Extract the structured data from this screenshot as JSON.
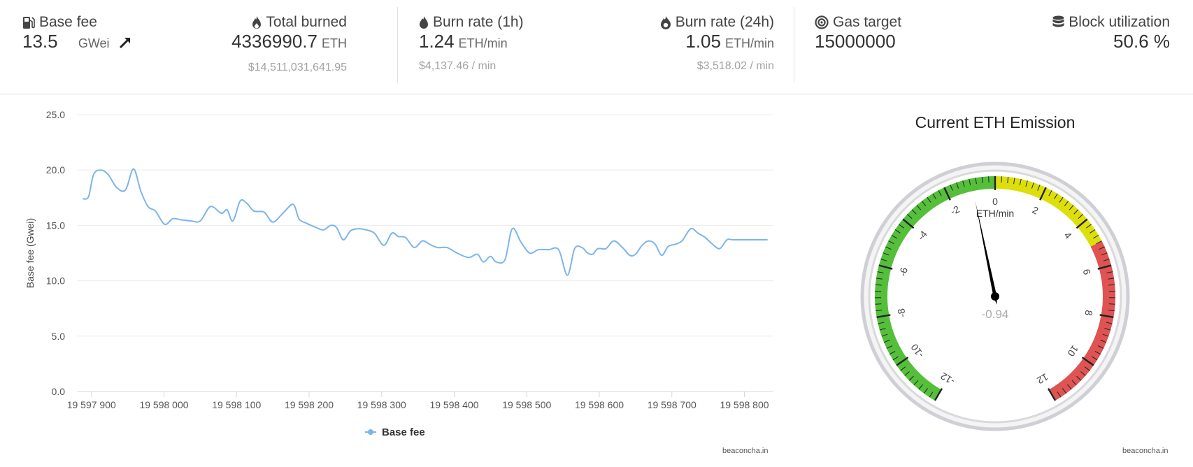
{
  "stats": {
    "base_fee": {
      "label": "Base fee",
      "value": "13.5",
      "unit": "GWei"
    },
    "total_burned": {
      "label": "Total burned",
      "value": "4336990.7",
      "unit": "ETH",
      "usd": "$14,511,031,641.95"
    },
    "burn_rate_1h": {
      "label": "Burn rate (1h)",
      "value": "1.24",
      "unit": "ETH/min",
      "usd": "$4,137.46 / min"
    },
    "burn_rate_24h": {
      "label": "Burn rate (24h)",
      "value": "1.05",
      "unit": "ETH/min",
      "usd": "$3,518.02 / min"
    },
    "gas_target": {
      "label": "Gas target",
      "value": "15000000"
    },
    "block_utilization": {
      "label": "Block utilization",
      "value": "50.6 %"
    }
  },
  "colors": {
    "line": "#7cb5ec",
    "green": "#55bf3b",
    "yellow": "#dddf0d",
    "red": "#df5353"
  },
  "chart_data": [
    {
      "type": "line",
      "title": "",
      "xlabel": "",
      "ylabel": "Base fee (Gwei)",
      "ylim": [
        0,
        25
      ],
      "xlim": [
        19597880,
        19598840
      ],
      "y_ticks": [
        "0.0",
        "5.0",
        "10.0",
        "15.0",
        "20.0",
        "25.0"
      ],
      "x_ticks": [
        "19 597 900",
        "19 598 000",
        "19 598 100",
        "19 598 200",
        "19 598 300",
        "19 598 400",
        "19 598 500",
        "19 598 600",
        "19 598 700",
        "19 598 800"
      ],
      "legend": "bottom-center",
      "credit": "beaconcha.in",
      "series": [
        {
          "name": "Base fee",
          "x": [
            19597888,
            19597896,
            19597903,
            19597913,
            19597923,
            19597935,
            19597947,
            19597958,
            19597968,
            19597978,
            19597988,
            19598001,
            19598012,
            19598024,
            19598038,
            19598050,
            19598064,
            19598079,
            19598087,
            19598095,
            19598105,
            19598114,
            19598124,
            19598138,
            19598150,
            19598164,
            19598178,
            19598186,
            19598196,
            19598210,
            19598220,
            19598230,
            19598238,
            19598247,
            19598257,
            19598267,
            19598278,
            19598290,
            19598303,
            19598314,
            19598323,
            19598333,
            19598345,
            19598356,
            19598366,
            19598377,
            19598390,
            19598404,
            19598420,
            19598432,
            19598440,
            19598450,
            19598458,
            19598470,
            19598480,
            19598492,
            19598504,
            19598516,
            19598530,
            19598544,
            19598556,
            19598566,
            19598576,
            19598584,
            19598591,
            19598598,
            19598609,
            19598620,
            19598632,
            19598642,
            19598650,
            19598659,
            19598668,
            19598677,
            19598686,
            19598695,
            19598705,
            19598714,
            19598726,
            19598736,
            19598746,
            19598756,
            19598766,
            19598776,
            19598784,
            19598792,
            19598802,
            19598812,
            19598822,
            19598832
          ],
          "y": [
            17.4,
            17.6,
            19.6,
            20.0,
            19.6,
            18.4,
            18.2,
            20.1,
            18.1,
            16.7,
            16.3,
            15.1,
            15.6,
            15.5,
            15.4,
            15.4,
            16.7,
            16.1,
            16.4,
            15.4,
            17.2,
            17.0,
            16.3,
            16.2,
            15.3,
            16.1,
            16.9,
            15.6,
            15.2,
            14.8,
            14.6,
            15.0,
            14.8,
            13.7,
            14.5,
            14.7,
            14.6,
            14.3,
            13.2,
            14.3,
            14.0,
            13.9,
            13.0,
            13.6,
            13.3,
            13.0,
            13.0,
            12.5,
            12.1,
            12.4,
            11.7,
            12.2,
            11.7,
            11.9,
            14.7,
            13.5,
            12.5,
            12.8,
            12.8,
            12.8,
            10.5,
            12.9,
            13.0,
            12.5,
            12.4,
            12.9,
            12.9,
            13.6,
            13.0,
            12.3,
            12.4,
            13.2,
            13.6,
            13.3,
            12.3,
            13.1,
            13.3,
            13.6,
            14.7,
            14.3,
            13.9,
            13.3,
            12.9,
            13.7,
            13.7,
            13.7,
            13.7,
            13.7,
            13.7,
            13.7
          ]
        }
      ]
    },
    {
      "type": "gauge",
      "title": "Current ETH Emission",
      "unit_label": "ETH/min",
      "value": -0.94,
      "value_label": "-0.94",
      "range": [
        -12,
        12
      ],
      "tick_labels": [
        "-12",
        "-10",
        "-8",
        "-6",
        "-4",
        "-2",
        "0",
        "2",
        "4",
        "6",
        "8",
        "10",
        "12"
      ],
      "bands": [
        {
          "from": -12,
          "to": 0,
          "color": "#55bf3b"
        },
        {
          "from": 0,
          "to": 5,
          "color": "#dddf0d"
        },
        {
          "from": 5,
          "to": 12,
          "color": "#df5353"
        }
      ],
      "credit": "beaconcha.in"
    }
  ]
}
